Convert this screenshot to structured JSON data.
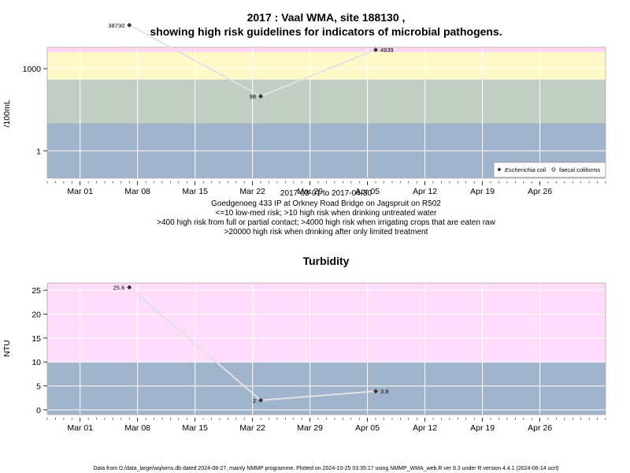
{
  "footer": "Data from D:/data_large/wq/wms.db dated 2024-08-27, mainly NMMP programme. Plotted on 2024-10-25 03:35:17 using NMMP_WMA_web.R ver 9.3 under R version 4.4.1 (2024-06-14 ucrt)",
  "chart_data": [
    {
      "type": "line",
      "title_lines": [
        "2017 : Vaal WMA, site 188130 ,",
        "showing high risk guidelines for indicators of microbial pathogens."
      ],
      "ylabel": "/100mL",
      "y_scale": "log10",
      "ylim": [
        0.1,
        6000
      ],
      "xlim": [
        "2017-02-25",
        "2017-05-04"
      ],
      "x_ticks": [
        "Mar 01",
        "Mar 08",
        "Mar 15",
        "Mar 22",
        "Mar 29",
        "Apr 05",
        "Apr 12",
        "Apr 19",
        "Apr 26"
      ],
      "x_tick_dates": [
        "2017-03-01",
        "2017-03-08",
        "2017-03-15",
        "2017-03-22",
        "2017-03-29",
        "2017-04-05",
        "2017-04-12",
        "2017-04-19",
        "2017-04-26"
      ],
      "y_ticks": [
        1,
        1000
      ],
      "y_tick_labels": [
        "1",
        "1000"
      ],
      "grid": true,
      "bands": [
        {
          "from": 0.1,
          "to": 10,
          "color": "#a0b4cc"
        },
        {
          "from": 10,
          "to": 400,
          "color": "#c2cdc4"
        },
        {
          "from": 400,
          "to": 4000,
          "color": "#fff9c8"
        },
        {
          "from": 4000,
          "to": 20000,
          "color": "#ffd6f2"
        },
        {
          "from": 20000,
          "to": 6000,
          "color": "#fcb4c0"
        }
      ],
      "top_bands": [
        {
          "from": 9000,
          "to": 6000,
          "color": "#fcb4c0"
        },
        {
          "from": 5000,
          "to": 9000,
          "color": "#ffd6f2"
        }
      ],
      "series": [
        {
          "name": "Escherichia coli",
          "marker": "filled-diamond",
          "x": [
            "2017-03-07",
            "2017-03-23",
            "2017-04-06"
          ],
          "y": [
            38730,
            98,
            4839
          ],
          "labels": [
            "38730",
            "98",
            "4839"
          ]
        }
      ],
      "legend_entries": [
        "Escherichia coli",
        "faecal coliforms"
      ],
      "legend_position": "bottom-right",
      "caption_lines": [
        "2017-03-01 to 2017-04-30",
        "Goedgenoeg 433 IP at Orkney Road Bridge on Jagspruit on R502",
        "<=10 low-med risk; >10 high risk when drinking untreated water",
        ">400 high risk from full or partial contact; >4000 high risk when irrigating crops that are eaten raw",
        ">20000 high risk when drinking after only limited treatment"
      ]
    },
    {
      "type": "line",
      "title": "Turbidity",
      "ylabel": "NTU",
      "ylim": [
        -1,
        26.5
      ],
      "xlim": [
        "2017-02-25",
        "2017-05-04"
      ],
      "x_ticks": [
        "Mar 01",
        "Mar 08",
        "Mar 15",
        "Mar 22",
        "Mar 29",
        "Apr 05",
        "Apr 12",
        "Apr 19",
        "Apr 26"
      ],
      "x_tick_dates": [
        "2017-03-01",
        "2017-03-08",
        "2017-03-15",
        "2017-03-22",
        "2017-03-29",
        "2017-04-05",
        "2017-04-12",
        "2017-04-19",
        "2017-04-26"
      ],
      "y_ticks": [
        0,
        5,
        10,
        15,
        20,
        25
      ],
      "y_tick_labels": [
        "0",
        "5",
        "10",
        "15",
        "20",
        "25"
      ],
      "grid": true,
      "bands": [
        {
          "from": -1,
          "to": 10,
          "color": "#a0b4cc"
        },
        {
          "from": 10,
          "to": 26.5,
          "color": "#ffdcfa"
        }
      ],
      "series": [
        {
          "name": "",
          "marker": "filled-diamond",
          "x": [
            "2017-03-07",
            "2017-03-23",
            "2017-04-06"
          ],
          "y": [
            25.6,
            2,
            3.9
          ],
          "labels": [
            "25.6",
            "2",
            "3.9"
          ]
        }
      ]
    }
  ]
}
